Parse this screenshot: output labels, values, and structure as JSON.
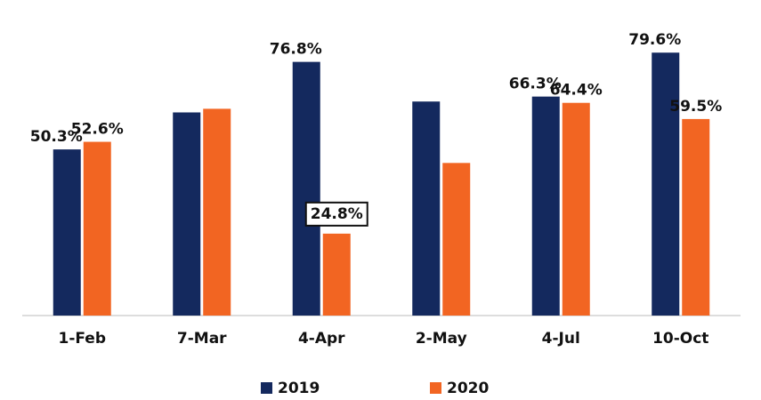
{
  "chart_data": {
    "type": "bar",
    "categories": [
      "1-Feb",
      "7-Mar",
      "4-Apr",
      "2-May",
      "4-Jul",
      "10-Oct"
    ],
    "series": [
      {
        "name": "2019",
        "color": "#14295e",
        "values": [
          50.3,
          61.5,
          76.8,
          64.8,
          66.3,
          79.6
        ],
        "value_labels": [
          "50.3%",
          null,
          "76.8%",
          null,
          "66.3%",
          "79.6%"
        ]
      },
      {
        "name": "2020",
        "color": "#f26522",
        "values": [
          52.6,
          62.6,
          24.8,
          46.2,
          64.4,
          59.5
        ],
        "value_labels": [
          "52.6%",
          null,
          "24.8%",
          null,
          "64.4%",
          "59.5%"
        ]
      }
    ],
    "ylim": [
      0,
      95
    ]
  }
}
